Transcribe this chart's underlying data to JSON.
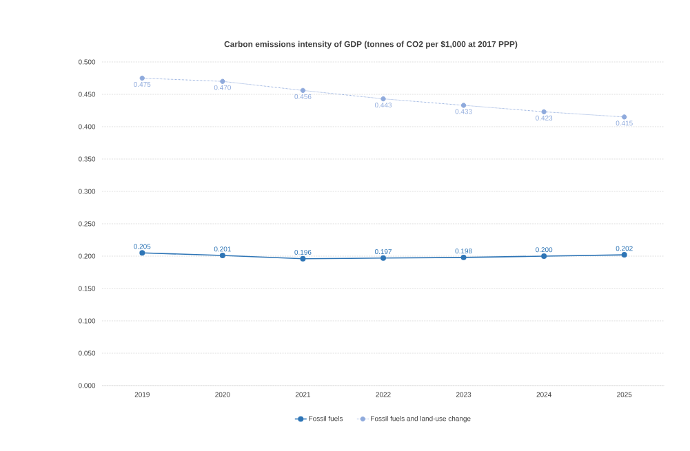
{
  "chart_data": {
    "type": "line",
    "title": "Carbon emissions intensity of GDP (tonnes of CO2 per $1,000 at 2017 PPP)",
    "categories": [
      "2019",
      "2020",
      "2021",
      "2022",
      "2023",
      "2024",
      "2025"
    ],
    "series": [
      {
        "name": "Fossil fuels",
        "color": "#2e75b6",
        "line_style": "solid",
        "values": [
          0.205,
          0.201,
          0.196,
          0.197,
          0.198,
          0.2,
          0.202
        ],
        "value_labels": [
          "0.205",
          "0.201",
          "0.196",
          "0.197",
          "0.198",
          "0.200",
          "0.202"
        ]
      },
      {
        "name": "Fossil fuels and land-use change",
        "color": "#8faadc",
        "line_style": "dotted",
        "values": [
          0.475,
          0.47,
          0.456,
          0.443,
          0.433,
          0.423,
          0.415
        ],
        "value_labels": [
          "0.475",
          "0.470",
          "0.456",
          "0.443",
          "0.433",
          "0.423",
          "0.415"
        ]
      }
    ],
    "ylim": [
      0,
      0.5
    ],
    "yticks": [
      {
        "value": 0,
        "label": "0.000"
      },
      {
        "value": 0.05,
        "label": "0.050"
      },
      {
        "value": 0.1,
        "label": "0.100"
      },
      {
        "value": 0.15,
        "label": "0.150"
      },
      {
        "value": 0.2,
        "label": "0.200"
      },
      {
        "value": 0.25,
        "label": "0.250"
      },
      {
        "value": 0.3,
        "label": "0.300"
      },
      {
        "value": 0.35,
        "label": "0.350"
      },
      {
        "value": 0.4,
        "label": "0.400"
      },
      {
        "value": 0.45,
        "label": "0.450"
      },
      {
        "value": 0.5,
        "label": "0.500"
      }
    ],
    "grid": "y",
    "legend": "bottom",
    "marker": "circle"
  }
}
